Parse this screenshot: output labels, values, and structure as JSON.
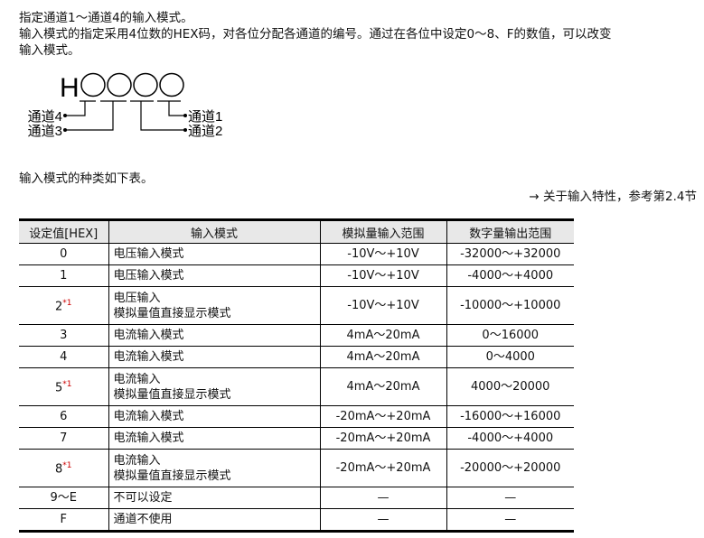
{
  "intro": {
    "line1": "指定通道1～通道4的输入模式。",
    "line2": "输入模式的指定采用4位数的HEX码，对各位分配各通道的编号。通过在各位中设定0～8、F的数值，可以改变",
    "line3": "输入模式。"
  },
  "diagram": {
    "prefix": "H",
    "ch4": "通道4",
    "ch3": "通道3",
    "ch2": "通道2",
    "ch1": "通道1"
  },
  "table_intro": "输入模式的种类如下表。",
  "reference": "→  关于输入特性，参考第2.4节",
  "table": {
    "headers": [
      "设定值[HEX]",
      "输入模式",
      "模拟量输入范围",
      "数字量输出范围"
    ],
    "note_mark": "*1",
    "rows": [
      {
        "value": "0",
        "note": "",
        "mode": [
          "电压输入模式"
        ],
        "analog": "-10V～+10V",
        "digital": "-32000～+32000"
      },
      {
        "value": "1",
        "note": "",
        "mode": [
          "电压输入模式"
        ],
        "analog": "-10V～+10V",
        "digital": "-4000～+4000"
      },
      {
        "value": "2",
        "note": "*1",
        "mode": [
          "电压输入",
          "模拟量值直接显示模式"
        ],
        "analog": "-10V～+10V",
        "digital": "-10000～+10000"
      },
      {
        "value": "3",
        "note": "",
        "mode": [
          "电流输入模式"
        ],
        "analog": "4mA～20mA",
        "digital": "0～16000"
      },
      {
        "value": "4",
        "note": "",
        "mode": [
          "电流输入模式"
        ],
        "analog": "4mA～20mA",
        "digital": "0～4000"
      },
      {
        "value": "5",
        "note": "*1",
        "mode": [
          "电流输入",
          "模拟量值直接显示模式"
        ],
        "analog": "4mA～20mA",
        "digital": "4000～20000"
      },
      {
        "value": "6",
        "note": "",
        "mode": [
          "电流输入模式"
        ],
        "analog": "-20mA～+20mA",
        "digital": "-16000～+16000"
      },
      {
        "value": "7",
        "note": "",
        "mode": [
          "电流输入模式"
        ],
        "analog": "-20mA～+20mA",
        "digital": "-4000～+4000"
      },
      {
        "value": "8",
        "note": "*1",
        "mode": [
          "电流输入",
          "模拟量值直接显示模式"
        ],
        "analog": "-20mA～+20mA",
        "digital": "-20000～+20000"
      },
      {
        "value": "9～E",
        "note": "",
        "mode": [
          "不可以设定"
        ],
        "analog": "—",
        "digital": "—"
      },
      {
        "value": "F",
        "note": "",
        "mode": [
          "通道不使用"
        ],
        "analog": "—",
        "digital": "—"
      }
    ]
  }
}
